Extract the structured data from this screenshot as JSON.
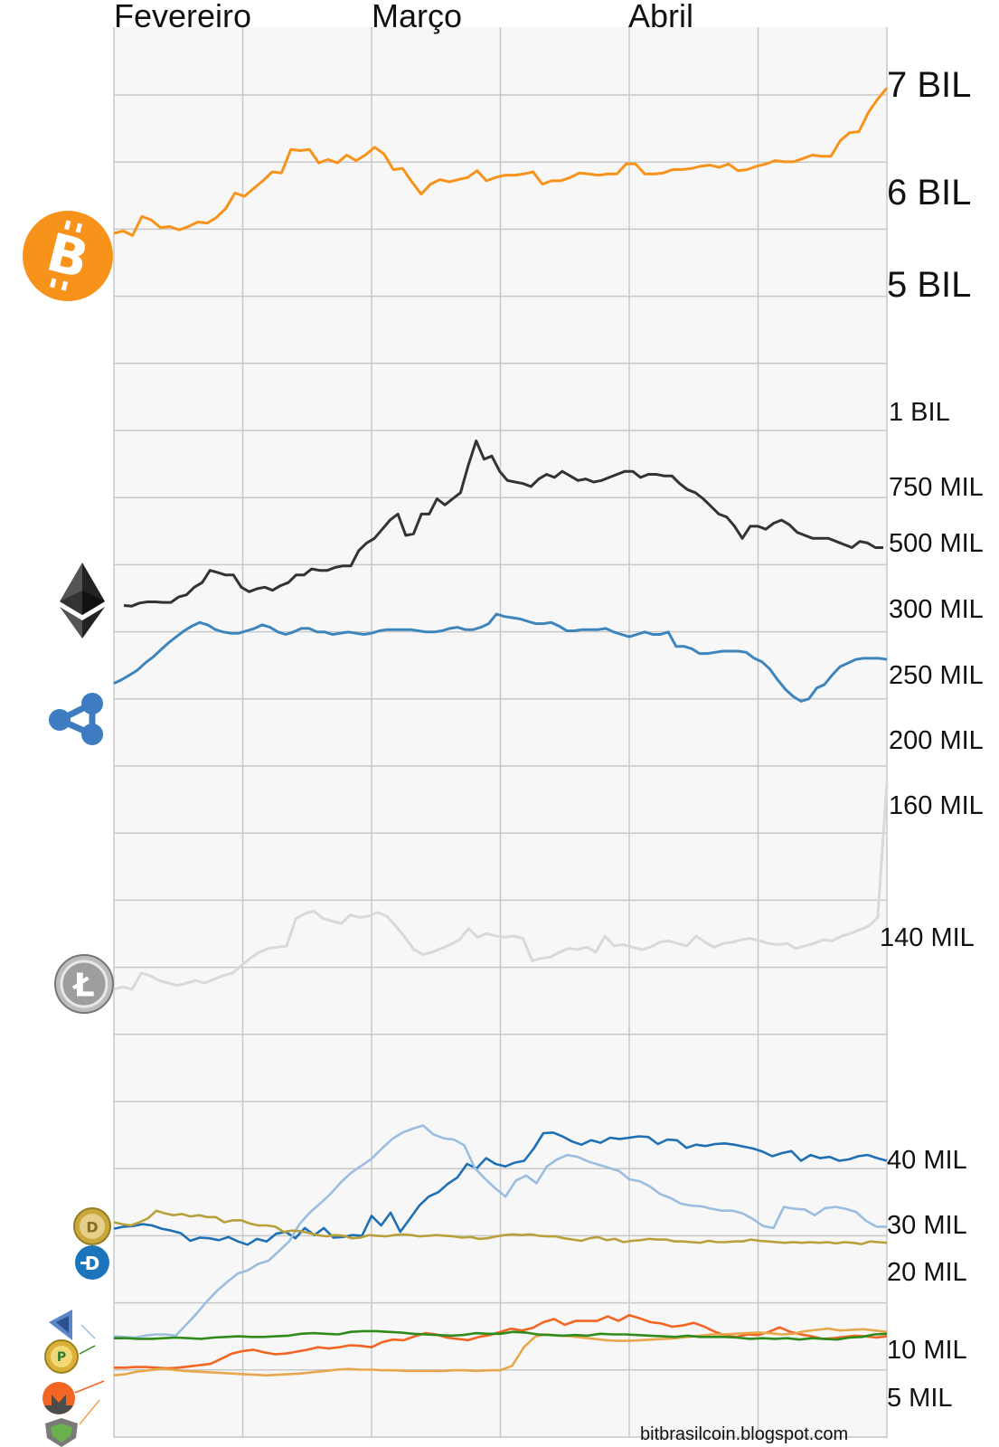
{
  "chart_data": {
    "type": "line",
    "x_range": [
      0,
      120
    ],
    "months": [
      "Fevereiro",
      "Março",
      "Abril"
    ],
    "credit": "bitbrasilcoin.blogspot.com",
    "y_labels": [
      "7 BIL",
      "6 BIL",
      "5 BIL",
      "1 BIL",
      "750 MIL",
      "500 MIL",
      "300 MIL",
      "250 MIL",
      "200 MIL",
      "160 MIL",
      "140 MIL",
      "40 MIL",
      "30 MIL",
      "20 MIL",
      "10 MIL",
      "5 MIL"
    ],
    "series": [
      {
        "color": "#f7931a",
        "icon": "bitcoin-icon",
        "y_scale": "5 BIL – 7 BIL",
        "values": [
          5.6,
          5.62,
          5.58,
          5.75,
          5.72,
          5.65,
          5.66,
          5.63,
          5.66,
          5.7,
          5.69,
          5.74,
          5.82,
          5.96,
          5.93,
          6.0,
          6.07,
          6.15,
          6.14,
          6.35,
          6.34,
          6.35,
          6.23,
          6.26,
          6.23,
          6.3,
          6.25,
          6.3,
          6.37,
          6.31,
          6.17,
          6.18,
          6.06,
          5.95,
          6.04,
          6.08,
          6.06,
          6.08,
          6.1,
          6.16,
          6.07,
          6.1,
          6.12,
          6.12,
          6.13,
          6.15,
          6.04,
          6.07,
          6.07,
          6.1,
          6.14,
          6.13,
          6.12,
          6.13,
          6.13,
          6.22,
          6.22,
          6.13,
          6.13,
          6.14,
          6.17,
          6.17,
          6.18,
          6.2,
          6.21,
          6.19,
          6.22,
          6.16,
          6.17,
          6.2,
          6.22,
          6.25,
          6.24,
          6.24,
          6.27,
          6.3,
          6.29,
          6.29,
          6.43,
          6.5,
          6.51,
          6.68,
          6.8,
          6.9
        ]
      },
      {
        "color": "#333333",
        "icon": "ethereum-icon",
        "y_scale": "300 MIL – 1 BIL",
        "values": [
          340,
          338,
          348,
          352,
          352,
          350,
          350,
          368,
          375,
          400,
          415,
          455,
          448,
          440,
          440,
          400,
          385,
          395,
          400,
          390,
          405,
          415,
          440,
          440,
          460,
          455,
          455,
          465,
          470,
          470,
          520,
          545,
          560,
          590,
          620,
          640,
          570,
          575,
          640,
          640,
          690,
          670,
          690,
          710,
          800,
          880,
          820,
          830,
          780,
          750,
          745,
          740,
          730,
          755,
          770,
          760,
          780,
          765,
          750,
          755,
          745,
          750,
          760,
          770,
          780,
          780,
          760,
          770,
          770,
          765,
          765,
          740,
          720,
          710,
          690,
          665,
          640,
          630,
          600,
          560,
          600,
          600,
          590,
          610,
          620,
          605,
          580,
          570,
          560,
          560,
          560,
          550,
          540,
          530,
          550,
          545,
          530,
          530
        ]
      },
      {
        "color": "#3d85bb",
        "icon": "ripple-icon",
        "y_scale": "200 MIL – 300 MIL",
        "values": [
          245,
          248,
          252,
          256,
          262,
          267,
          273,
          279,
          284,
          289,
          293,
          296,
          294,
          290,
          288,
          287,
          287,
          289,
          291,
          294,
          292,
          288,
          286,
          288,
          291,
          291,
          288,
          288,
          286,
          287,
          288,
          287,
          286,
          287,
          289,
          290,
          290,
          290,
          290,
          289,
          288,
          288,
          289,
          291,
          292,
          290,
          290,
          292,
          295,
          303,
          301,
          300,
          299,
          297,
          295,
          295,
          296,
          293,
          289,
          289,
          290,
          290,
          290,
          291,
          288,
          286,
          284,
          286,
          288,
          286,
          286,
          288,
          276,
          276,
          274,
          270,
          270,
          271,
          272,
          272,
          272,
          271,
          266,
          263,
          257,
          248,
          240,
          234,
          230,
          232,
          241,
          244,
          252,
          259,
          262,
          265,
          266,
          266,
          266,
          265
        ]
      },
      {
        "color": "#d9d9d9",
        "icon": "litecoin-icon",
        "y_scale": "140 MIL – 160 MIL",
        "values": [
          137.3,
          137.5,
          137.3,
          138.6,
          138.4,
          138.0,
          137.8,
          137.6,
          137.8,
          138.0,
          137.8,
          138.1,
          138.4,
          138.6,
          139.2,
          139.8,
          140.3,
          140.6,
          140.7,
          140.8,
          143.0,
          143.4,
          143.6,
          143.0,
          142.8,
          142.6,
          143.3,
          143.1,
          143.2,
          143.5,
          143.2,
          142.4,
          141.5,
          140.5,
          140.1,
          140.3,
          140.6,
          140.9,
          141.3,
          142.2,
          141.5,
          141.8,
          141.6,
          141.5,
          141.6,
          141.4,
          139.6,
          139.8,
          139.9,
          140.3,
          140.6,
          140.5,
          140.7,
          140.3,
          141.6,
          140.8,
          140.9,
          140.7,
          140.5,
          140.7,
          141.1,
          141.2,
          141.0,
          140.8,
          141.6,
          141.1,
          140.7,
          141.0,
          141.1,
          141.3,
          141.4,
          141.2,
          141.0,
          140.9,
          141.0,
          140.6,
          140.8,
          141.0,
          141.3,
          141.2,
          141.6,
          141.8,
          142.1,
          142.4,
          143.1,
          154.0
        ]
      },
      {
        "color": "#1f6fb4",
        "icon": "dash-icon",
        "y_scale": "5 MIL – 40 MIL",
        "values": [
          27.5,
          27.8,
          27.9,
          28.2,
          28.0,
          27.5,
          27.2,
          26.8,
          25.6,
          26.1,
          26.0,
          25.7,
          26.2,
          25.5,
          25.0,
          25.9,
          25.5,
          26.7,
          27.0,
          26.0,
          27.6,
          26.5,
          27.6,
          26.1,
          26.2,
          26.5,
          26.4,
          29.5,
          28.0,
          30.0,
          27.0,
          29.0,
          31.1,
          32.5,
          33.2,
          34.5,
          35.5,
          37.6,
          36.9,
          38.5,
          37.6,
          37.2,
          37.8,
          38.1,
          40.0,
          42.4,
          42.5,
          41.9,
          41.1,
          40.6,
          41.3,
          40.9,
          41.7,
          41.5,
          41.7,
          41.9,
          41.8,
          40.7,
          41.4,
          41.3,
          40.1,
          40.6,
          40.4,
          40.7,
          40.8,
          40.6,
          40.3,
          40.0,
          39.5,
          38.8,
          39.3,
          39.6,
          38.1,
          39.0,
          38.5,
          38.7,
          38.1,
          38.3,
          38.8,
          39.0,
          38.5,
          38.1
        ]
      },
      {
        "color": "#9bbde0",
        "icon": "nem-icon",
        "y_scale": "5 MIL – 40 MIL",
        "values": [
          10.7,
          10.6,
          10.5,
          10.8,
          11.0,
          11.0,
          10.8,
          12.5,
          14.2,
          16.1,
          17.8,
          19.2,
          20.5,
          21.0,
          22.0,
          22.5,
          24.0,
          25.5,
          28.2,
          30.0,
          31.4,
          32.9,
          34.7,
          36.2,
          37.3,
          38.4,
          40.0,
          41.5,
          42.5,
          43.1,
          43.6,
          42.2,
          41.6,
          41.4,
          40.5,
          37.0,
          35.3,
          33.8,
          32.5,
          35.0,
          35.8,
          34.6,
          37.2,
          38.3,
          39.0,
          38.7,
          38.0,
          37.5,
          37.0,
          36.5,
          35.2,
          34.9,
          34.1,
          32.9,
          32.3,
          31.4,
          31.1,
          31.0,
          30.6,
          30.3,
          30.3,
          29.9,
          29.0,
          27.9,
          27.6,
          30.9,
          30.6,
          30.5,
          29.6,
          30.7,
          30.9,
          30.6,
          30.1,
          28.7,
          27.8,
          27.8
        ]
      },
      {
        "color": "#b8a03a",
        "icon": "dogecoin-icon",
        "y_scale": "5 MIL – 40 MIL",
        "values": [
          28.5,
          28.2,
          28.0,
          28.5,
          29.1,
          30.3,
          29.9,
          29.6,
          29.8,
          29.4,
          29.6,
          29.3,
          29.3,
          28.5,
          28.8,
          28.8,
          28.3,
          28.0,
          28.0,
          27.8,
          27.0,
          27.2,
          27.1,
          26.8,
          26.5,
          26.3,
          26.5,
          26.4,
          26.0,
          26.1,
          26.5,
          26.4,
          26.3,
          26.5,
          26.6,
          26.5,
          26.3,
          26.4,
          26.5,
          26.4,
          26.3,
          26.1,
          26.2,
          25.9,
          26.0,
          26.3,
          26.5,
          26.6,
          26.5,
          26.6,
          26.4,
          26.3,
          26.3,
          26.0,
          25.8,
          25.6,
          26.0,
          26.2,
          25.7,
          25.9,
          25.4,
          25.6,
          25.7,
          25.9,
          25.8,
          25.8,
          25.5,
          25.5,
          25.4,
          25.3,
          25.6,
          25.4,
          25.4,
          25.5,
          25.5,
          25.8,
          25.6,
          25.5,
          25.4,
          25.3,
          25.4,
          25.3,
          25.4,
          25.3,
          25.4,
          25.2,
          25.4,
          25.3,
          25.1,
          25.5,
          25.4,
          25.3
        ]
      },
      {
        "color": "#f26522",
        "icon": "monero-icon",
        "y_scale": "5 MIL – 40 MIL",
        "values": [
          5.8,
          5.8,
          5.9,
          5.9,
          5.8,
          5.7,
          5.8,
          6.0,
          6.2,
          6.4,
          7.2,
          8.0,
          8.4,
          8.6,
          8.2,
          7.9,
          8.0,
          8.3,
          8.6,
          9.0,
          8.8,
          9.0,
          9.3,
          9.2,
          9.0,
          9.8,
          10.2,
          10.1,
          10.7,
          11.2,
          11.0,
          10.5,
          10.3,
          10.1,
          10.6,
          10.9,
          11.4,
          11.9,
          11.6,
          12.0,
          12.9,
          13.4,
          12.5,
          13.1,
          13.1,
          13.1,
          13.8,
          13.1,
          14.0,
          13.5,
          12.9,
          12.7,
          12.2,
          12.4,
          12.8,
          12.2,
          11.4,
          10.8,
          10.6,
          11.0,
          10.9,
          11.4,
          12.1,
          11.4,
          11.0,
          10.7,
          10.3,
          10.4,
          10.6,
          10.8,
          10.7,
          10.5,
          10.7
        ]
      },
      {
        "color": "#e7a74a",
        "icon": "peercoin-icon",
        "y_scale": "5 MIL – 40 MIL",
        "values": [
          4.6,
          4.8,
          5.2,
          5.4,
          5.6,
          5.5,
          5.3,
          5.2,
          5.1,
          5.0,
          4.9,
          4.8,
          4.7,
          4.6,
          4.7,
          4.8,
          4.9,
          5.1,
          5.3,
          5.5,
          5.6,
          5.5,
          5.5,
          5.4,
          5.4,
          5.3,
          5.3,
          5.3,
          5.3,
          5.4,
          5.4,
          5.3,
          5.4,
          5.4,
          6.1,
          9.0,
          10.7,
          11.0,
          10.8,
          10.7,
          10.5,
          10.3,
          10.1,
          10.0,
          10.0,
          10.1,
          10.2,
          10.3,
          10.4,
          10.6,
          10.8,
          11.0,
          11.0,
          11.1,
          11.2,
          11.3,
          11.2,
          11.0,
          11.1,
          11.5,
          11.7,
          11.9,
          11.6,
          11.7,
          11.8,
          11.6,
          11.4
        ]
      },
      {
        "color": "#2e8b1c",
        "icon": "nxt-icon",
        "y_scale": "5 MIL – 40 MIL",
        "values": [
          10.4,
          10.4,
          10.3,
          10.3,
          10.4,
          10.5,
          10.4,
          10.3,
          10.5,
          10.6,
          10.7,
          10.6,
          10.6,
          10.7,
          10.8,
          11.1,
          11.2,
          11.1,
          11.0,
          11.4,
          11.5,
          11.5,
          11.4,
          11.3,
          11.1,
          11.0,
          10.9,
          10.8,
          10.9,
          11.2,
          11.1,
          11.1,
          11.4,
          11.3,
          11.0,
          10.9,
          10.8,
          10.9,
          10.8,
          11.1,
          11.0,
          11.0,
          10.9,
          10.8,
          10.7,
          10.6,
          10.8,
          10.6,
          10.6,
          10.6,
          10.5,
          10.3,
          10.4,
          10.3,
          10.4,
          10.2,
          10.4,
          10.3,
          10.2,
          10.5,
          10.6,
          11.0,
          11.1
        ]
      }
    ]
  }
}
